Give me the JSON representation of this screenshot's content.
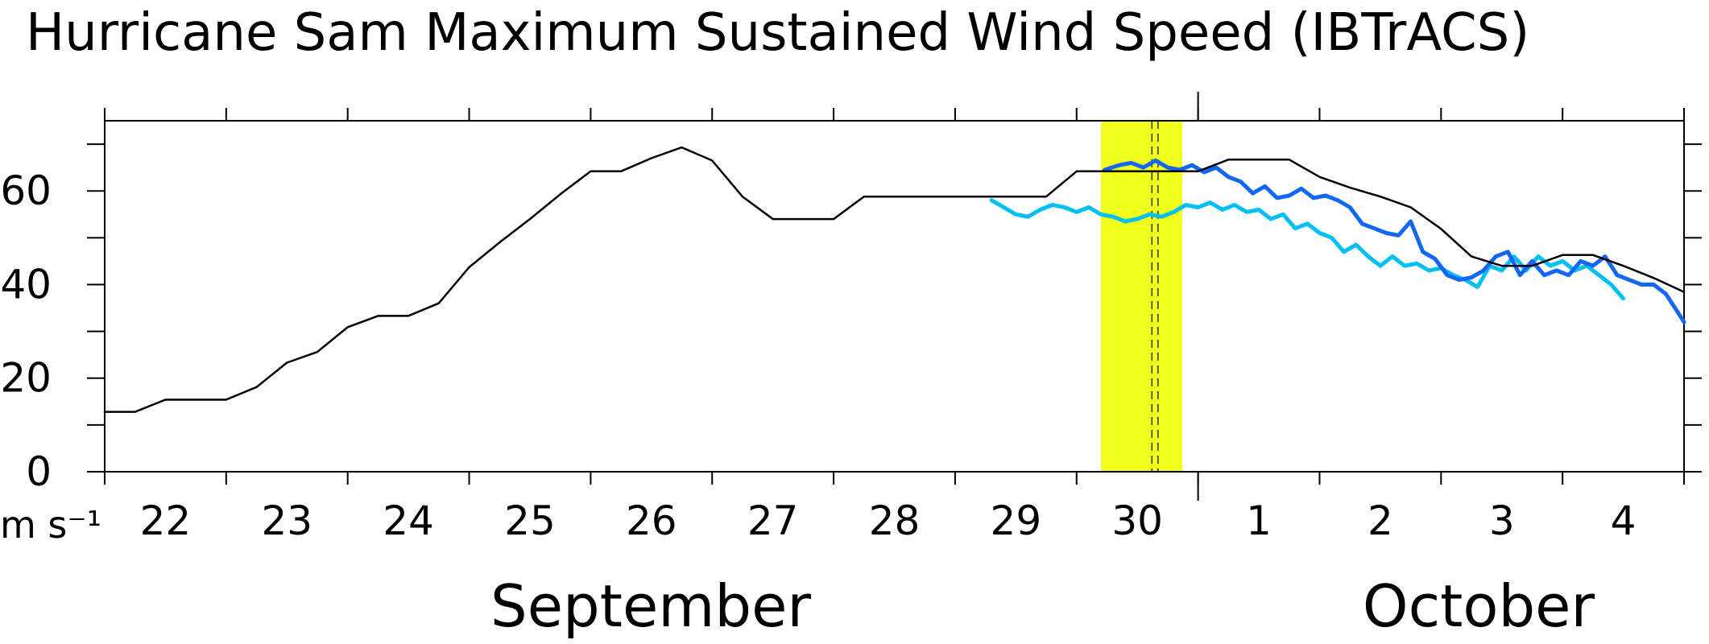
{
  "chart_data": {
    "type": "line",
    "title": "Hurricane Sam Maximum Sustained Wind Speed (IBTrACS)",
    "y_label": "m s⁻¹",
    "month_labels": [
      "September",
      "October"
    ],
    "xlim": [
      0,
      13
    ],
    "xticks": [
      {
        "value": 0.5,
        "label": "22"
      },
      {
        "value": 1.5,
        "label": "23"
      },
      {
        "value": 2.5,
        "label": "24"
      },
      {
        "value": 3.5,
        "label": "25"
      },
      {
        "value": 4.5,
        "label": "26"
      },
      {
        "value": 5.5,
        "label": "27"
      },
      {
        "value": 6.5,
        "label": "28"
      },
      {
        "value": 7.5,
        "label": "29"
      },
      {
        "value": 8.5,
        "label": "30"
      },
      {
        "value": 9.5,
        "label": "1"
      },
      {
        "value": 10.5,
        "label": "2"
      },
      {
        "value": 11.5,
        "label": "3"
      },
      {
        "value": 12.5,
        "label": "4"
      }
    ],
    "day_boundaries": [
      0,
      1,
      2,
      3,
      4,
      5,
      6,
      7,
      8,
      9,
      10,
      11,
      12,
      13
    ],
    "month_boundary": 9,
    "ylim": [
      0,
      75
    ],
    "yticks": [
      0,
      20,
      40,
      60
    ],
    "yminor_ticks": [
      10,
      30,
      50,
      70
    ],
    "shaded_span": {
      "range": [
        8.2,
        8.87
      ],
      "color": "#f2ff1a"
    },
    "dashed_lines": [
      8.62,
      8.67
    ],
    "series": [
      {
        "color": "#000000",
        "width": 2.5,
        "x": [
          0,
          0.25,
          0.5,
          0.75,
          1.0,
          1.25,
          1.5,
          1.75,
          2.0,
          2.25,
          2.5,
          2.75,
          3.0,
          3.25,
          3.5,
          3.75,
          4.0,
          4.25,
          4.5,
          4.75,
          5.0,
          5.25,
          5.5,
          5.75,
          6.0,
          6.25,
          6.5,
          6.75,
          7.0,
          7.25,
          7.5,
          7.75,
          8.0,
          8.25,
          8.5,
          8.75,
          9.0,
          9.25,
          9.5,
          9.75,
          10.0,
          10.25,
          10.5,
          10.75,
          11.0,
          11.25,
          11.5,
          11.75,
          12.0,
          12.25,
          12.5,
          12.75,
          13.0
        ],
        "values": [
          12.8,
          12.8,
          15.4,
          15.4,
          15.4,
          18.1,
          23.3,
          25.6,
          30.9,
          33.3,
          33.3,
          36,
          43.7,
          49,
          54,
          59.3,
          64.2,
          64.2,
          67,
          69.3,
          66.5,
          58.8,
          54,
          54,
          54,
          58.8,
          58.8,
          58.8,
          58.8,
          58.8,
          58.8,
          58.8,
          64.2,
          64.2,
          64.2,
          64.2,
          64.2,
          66.7,
          66.7,
          66.7,
          63,
          60.7,
          58.8,
          56.5,
          51.9,
          46,
          44,
          44,
          46.3,
          46.3,
          44,
          41.4,
          38.4
        ]
      },
      {
        "color": "#00bff2",
        "width": 5,
        "x": [
          7.3,
          7.4,
          7.5,
          7.6,
          7.7,
          7.8,
          7.9,
          8.0,
          8.1,
          8.2,
          8.3,
          8.4,
          8.5,
          8.6,
          8.7,
          8.8,
          8.9,
          9.0,
          9.1,
          9.2,
          9.3,
          9.4,
          9.5,
          9.6,
          9.7,
          9.8,
          9.9,
          10.0,
          10.1,
          10.2,
          10.3,
          10.4,
          10.5,
          10.6,
          10.7,
          10.8,
          10.9,
          11.0,
          11.1,
          11.2,
          11.3,
          11.4,
          11.5,
          11.6,
          11.7,
          11.8,
          11.9,
          12.0,
          12.1,
          12.2,
          12.3,
          12.4,
          12.5
        ],
        "values": [
          58,
          56.5,
          55,
          54.5,
          56,
          57,
          56.5,
          55.5,
          56.5,
          55,
          54.5,
          53.5,
          54,
          55,
          54.5,
          55.5,
          57,
          56.5,
          57.5,
          56,
          57,
          55.5,
          56,
          54,
          55,
          52,
          53,
          51,
          50,
          47,
          48.5,
          46,
          44,
          46,
          44,
          44.5,
          43,
          43.5,
          42,
          41,
          39.5,
          44,
          43,
          46,
          43,
          46,
          44,
          45,
          43,
          44,
          42,
          40,
          37
        ]
      },
      {
        "color": "#1466f5",
        "width": 5,
        "x": [
          8.23,
          8.35,
          8.45,
          8.55,
          8.65,
          8.75,
          8.85,
          8.95,
          9.05,
          9.15,
          9.25,
          9.35,
          9.45,
          9.55,
          9.65,
          9.75,
          9.85,
          9.95,
          10.05,
          10.15,
          10.25,
          10.35,
          10.45,
          10.55,
          10.65,
          10.75,
          10.85,
          10.95,
          11.05,
          11.15,
          11.25,
          11.35,
          11.45,
          11.55,
          11.65,
          11.75,
          11.85,
          11.95,
          12.05,
          12.15,
          12.25,
          12.35,
          12.45,
          12.55,
          12.65,
          12.75,
          12.85,
          12.95,
          13.0
        ],
        "values": [
          64.5,
          65.5,
          66,
          65,
          66.5,
          65,
          64.5,
          65.5,
          64,
          65,
          63,
          62,
          59.5,
          61,
          58.5,
          59,
          60.5,
          58.5,
          59,
          58,
          56.5,
          53,
          52,
          51,
          50.5,
          53.5,
          47,
          45.5,
          42,
          41,
          41.5,
          43,
          46,
          47,
          42,
          45,
          42,
          43,
          42,
          45,
          44,
          46,
          42,
          41,
          40,
          40,
          38,
          34,
          32
        ]
      }
    ]
  }
}
